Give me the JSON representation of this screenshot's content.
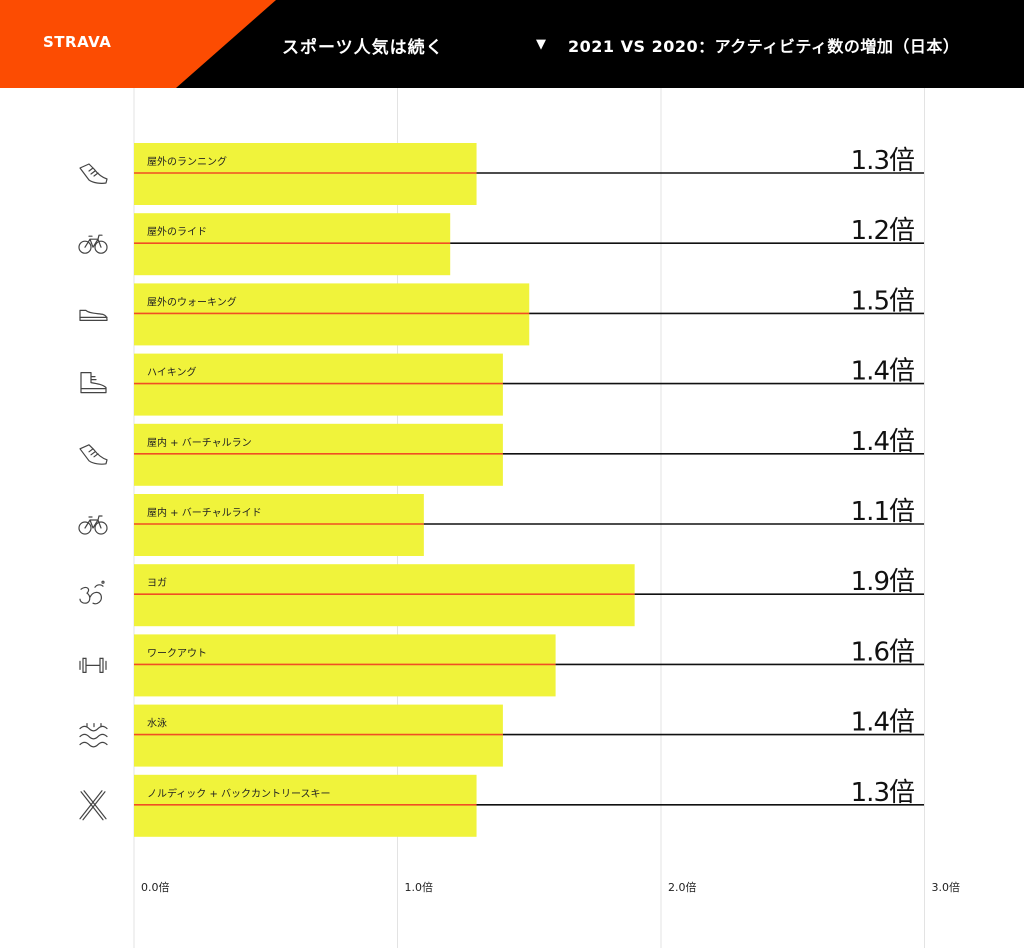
{
  "header": {
    "logo": "STRAVA",
    "title": "スポーツ人気は続く",
    "subtitle_marker": "▼",
    "subtitle": "2021 VS 2020：アクティビティ数の増加（日本）"
  },
  "colors": {
    "brand_orange": "#fc4c02",
    "header_bg": "#000000",
    "bar_fill": "#f0f33b",
    "accent_line": "#f04e23",
    "value_line": "#111111",
    "grid": "#e3e3e3"
  },
  "chart_data": {
    "type": "bar",
    "orientation": "horizontal",
    "categories": [
      "屋外のランニング",
      "屋外のライド",
      "屋外のウォーキング",
      "ハイキング",
      "屋内 + バーチャルラン",
      "屋内 + バーチャルライド",
      "ヨガ",
      "ワークアウト",
      "水泳",
      "ノルディック + バックカントリースキー"
    ],
    "icons": [
      "running-shoe-icon",
      "bicycle-icon",
      "walking-shoe-icon",
      "hiking-boot-icon",
      "running-shoe-icon",
      "bicycle-icon",
      "om-icon",
      "dumbbell-icon",
      "waves-icon",
      "crossed-skis-icon"
    ],
    "values": [
      1.3,
      1.2,
      1.5,
      1.4,
      1.4,
      1.1,
      1.9,
      1.6,
      1.4,
      1.3
    ],
    "value_labels": [
      "1.3倍",
      "1.2倍",
      "1.5倍",
      "1.4倍",
      "1.4倍",
      "1.1倍",
      "1.9倍",
      "1.6倍",
      "1.4倍",
      "1.3倍"
    ],
    "xticks": [
      0,
      1,
      2,
      3
    ],
    "xtick_labels": [
      "0.0倍",
      "1.0倍",
      "2.0倍",
      "3.0倍"
    ],
    "xlim": [
      0,
      3
    ],
    "grid": true
  }
}
